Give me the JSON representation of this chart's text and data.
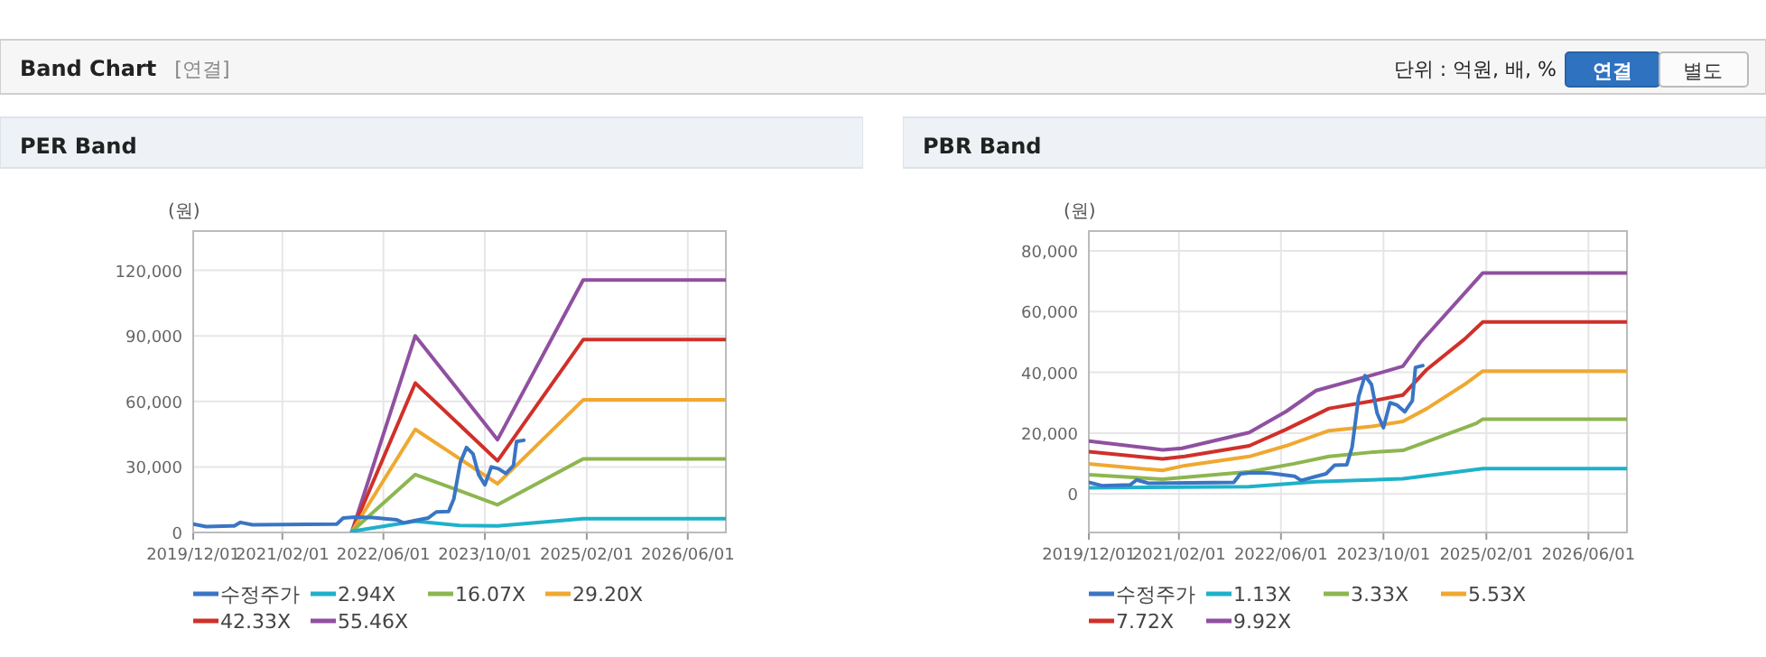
{
  "chart_data": [
    {
      "type": "other",
      "title": "Band Chart",
      "annotations": [
        "[연결]",
        "단위 : 억원, 배, %",
        "연결",
        "별도"
      ]
    },
    {
      "type": "line",
      "title": "PER Band",
      "ylabel": "(원)",
      "xlim": [
        "2019-12-01",
        "2026-12-01"
      ],
      "ylim": [
        0,
        138000
      ],
      "xticks": [
        {
          "value": "2019-12-01",
          "label": "2019/12/01"
        },
        {
          "value": "2021-02-01",
          "label": "2021/02/01"
        },
        {
          "value": "2022-06-01",
          "label": "2022/06/01"
        },
        {
          "value": "2023-10-01",
          "label": "2023/10/01"
        },
        {
          "value": "2025-02-01",
          "label": "2025/02/01"
        },
        {
          "value": "2026-06-01",
          "label": "2026/06/01"
        }
      ],
      "yticks": [
        0,
        {
          "value": 30000,
          "label": "30,000"
        },
        {
          "value": 60000,
          "label": "60,000"
        },
        {
          "value": 90000,
          "label": "90,000"
        },
        {
          "value": 120000,
          "label": "120,000"
        }
      ],
      "grid": true,
      "legend": "bottom",
      "series": [
        {
          "name": "수정주가",
          "color": "#3a75c4",
          "x": [
            "2019-12-01",
            "2020-02-01",
            "2020-06-15",
            "2020-07-15",
            "2020-09-10",
            "2021-10-20",
            "2021-11-20",
            "2022-01-15",
            "2022-04-10",
            "2022-08-05",
            "2022-09-05",
            "2022-11-01",
            "2023-01-01",
            "2023-02-10",
            "2023-04-10",
            "2023-05-05",
            "2023-06-05",
            "2023-07-05",
            "2023-08-05",
            "2023-09-01",
            "2023-10-01",
            "2023-11-01",
            "2023-12-05",
            "2024-01-10",
            "2024-02-15",
            "2024-03-01",
            "2024-04-05"
          ],
          "values": [
            3800,
            2700,
            3000,
            4600,
            3500,
            3800,
            6600,
            7000,
            6800,
            5800,
            4400,
            5500,
            6600,
            9400,
            9600,
            15400,
            32000,
            38900,
            36000,
            26500,
            21800,
            30000,
            29200,
            27000,
            30600,
            41600,
            42200
          ]
        },
        {
          "name": "2.94X",
          "color": "#1fb1c9",
          "x": [
            "2022-01-01",
            "2022-11-01",
            "2023-06-01",
            "2023-12-01",
            "2025-01-15",
            "2026-12-01"
          ],
          "values": [
            500,
            5200,
            3200,
            3000,
            6300,
            6300
          ]
        },
        {
          "name": "16.07X",
          "color": "#8db650",
          "x": [
            "2022-01-01",
            "2022-11-01",
            "2023-12-01",
            "2025-01-15",
            "2026-12-01"
          ],
          "values": [
            500,
            26500,
            12700,
            33700,
            33700
          ]
        },
        {
          "name": "29.20X",
          "color": "#f0a830",
          "x": [
            "2022-01-01",
            "2022-11-01",
            "2023-12-01",
            "2025-01-15",
            "2026-12-01"
          ],
          "values": [
            500,
            47200,
            22300,
            60700,
            60700
          ]
        },
        {
          "name": "42.33X",
          "color": "#d0302a",
          "x": [
            "2022-01-01",
            "2022-11-01",
            "2023-12-01",
            "2025-01-15",
            "2026-12-01"
          ],
          "values": [
            500,
            68400,
            32800,
            88300,
            88300
          ]
        },
        {
          "name": "55.46X",
          "color": "#9050a0",
          "x": [
            "2022-01-01",
            "2022-11-01",
            "2023-12-01",
            "2025-01-15",
            "2026-12-01"
          ],
          "values": [
            500,
            90000,
            42500,
            115600,
            115600
          ]
        }
      ]
    },
    {
      "type": "line",
      "title": "PBR Band",
      "ylabel": "(원)",
      "xlim": [
        "2019-12-01",
        "2026-12-01"
      ],
      "ylim": [
        -12700,
        86500
      ],
      "xticks": [
        {
          "value": "2019-12-01",
          "label": "2019/12/01"
        },
        {
          "value": "2021-02-01",
          "label": "2021/02/01"
        },
        {
          "value": "2022-06-01",
          "label": "2022/06/01"
        },
        {
          "value": "2023-10-01",
          "label": "2023/10/01"
        },
        {
          "value": "2025-02-01",
          "label": "2025/02/01"
        },
        {
          "value": "2026-06-01",
          "label": "2026/06/01"
        }
      ],
      "yticks": [
        0,
        {
          "value": 20000,
          "label": "20,000"
        },
        {
          "value": 40000,
          "label": "40,000"
        },
        {
          "value": 60000,
          "label": "60,000"
        },
        {
          "value": 80000,
          "label": "80,000"
        }
      ],
      "grid": true,
      "legend": "bottom",
      "series": [
        {
          "name": "수정주가",
          "color": "#3a75c4",
          "x": [
            "2019-12-01",
            "2020-02-01",
            "2020-06-15",
            "2020-07-15",
            "2020-09-10",
            "2021-10-20",
            "2021-11-20",
            "2022-01-15",
            "2022-04-10",
            "2022-08-05",
            "2022-09-05",
            "2022-11-01",
            "2023-01-01",
            "2023-02-10",
            "2023-04-10",
            "2023-05-05",
            "2023-06-05",
            "2023-07-05",
            "2023-08-05",
            "2023-09-01",
            "2023-10-01",
            "2023-11-01",
            "2023-12-05",
            "2024-01-10",
            "2024-02-15",
            "2024-03-01",
            "2024-04-05"
          ],
          "values": [
            3800,
            2700,
            3000,
            4600,
            3500,
            3800,
            6600,
            7000,
            6800,
            5800,
            4400,
            5500,
            6600,
            9400,
            9600,
            15400,
            32000,
            38900,
            36000,
            26500,
            21800,
            30000,
            29200,
            27000,
            30600,
            41600,
            42200
          ]
        },
        {
          "name": "1.13X",
          "color": "#1fb1c9",
          "x": [
            "2019-12-01",
            "2022-01-01",
            "2022-11-15",
            "2024-01-01",
            "2025-01-15",
            "2026-12-01"
          ],
          "values": [
            2000,
            2400,
            4000,
            5000,
            8300,
            8300
          ]
        },
        {
          "name": "3.33X",
          "color": "#8db650",
          "x": [
            "2019-12-01",
            "2020-11-15",
            "2022-01-01",
            "2022-08-01",
            "2023-01-15",
            "2023-08-05",
            "2024-01-01",
            "2024-04-25",
            "2024-12-15",
            "2025-01-15",
            "2026-12-01"
          ],
          "values": [
            6300,
            4800,
            7300,
            9900,
            12300,
            13700,
            14300,
            17200,
            23200,
            24600,
            24600
          ]
        },
        {
          "name": "5.53X",
          "color": "#f0a830",
          "x": [
            "2019-12-01",
            "2020-11-15",
            "2021-03-01",
            "2022-01-01",
            "2022-06-25",
            "2023-01-15",
            "2023-08-05",
            "2024-01-01",
            "2024-04-25",
            "2024-10-20",
            "2025-01-15",
            "2026-12-01"
          ],
          "values": [
            9900,
            7700,
            9300,
            12300,
            15800,
            20800,
            22200,
            23800,
            28100,
            36000,
            40400,
            40400
          ]
        },
        {
          "name": "7.72X",
          "color": "#d0302a",
          "x": [
            "2019-12-01",
            "2020-11-15",
            "2021-03-01",
            "2022-01-01",
            "2022-06-25",
            "2023-01-15",
            "2023-08-05",
            "2024-01-01",
            "2024-04-25",
            "2024-10-20",
            "2025-01-15",
            "2026-12-01"
          ],
          "values": [
            13900,
            11500,
            12300,
            15800,
            21200,
            28100,
            30500,
            32500,
            41000,
            50900,
            56600,
            56600
          ]
        },
        {
          "name": "9.92X",
          "color": "#9050a0",
          "x": [
            "2019-12-01",
            "2020-11-15",
            "2021-02-15",
            "2022-01-01",
            "2022-06-25",
            "2022-11-15",
            "2023-08-05",
            "2024-01-01",
            "2024-03-25",
            "2025-01-15",
            "2026-12-01"
          ],
          "values": [
            17400,
            14500,
            15000,
            20200,
            27100,
            34000,
            39000,
            42000,
            49900,
            72700,
            72700
          ]
        }
      ]
    }
  ]
}
